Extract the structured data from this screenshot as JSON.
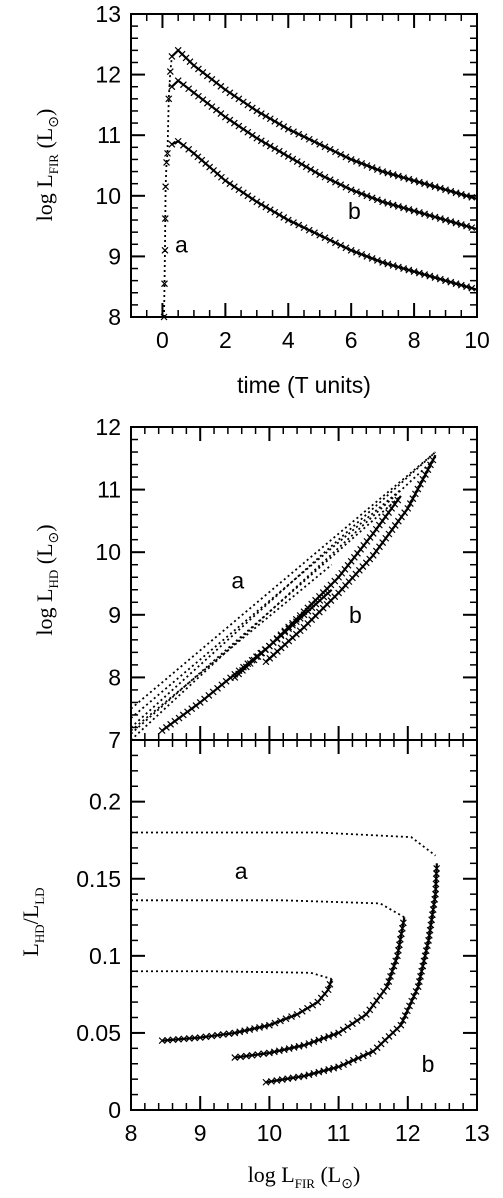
{
  "chart_data": [
    {
      "type": "line",
      "xlabel": "time (T units)",
      "ylabel": {
        "main": "log L",
        "sub": "FIR",
        "unit": "(L",
        "unit_symbol": "⊙",
        "unit_close": ")"
      },
      "xlim": [
        -1,
        10
      ],
      "ylim": [
        8,
        13
      ],
      "xticks": [
        0,
        2,
        4,
        6,
        8,
        10
      ],
      "yticks": [
        8,
        9,
        10,
        11,
        12,
        13
      ],
      "grid": false,
      "series": [
        {
          "style": "solid-cross",
          "x": [
            0.3,
            0.5,
            1,
            2,
            3,
            4,
            5,
            6,
            7,
            8,
            9,
            10
          ],
          "y": [
            12.3,
            12.4,
            12.15,
            11.75,
            11.4,
            11.1,
            10.85,
            10.6,
            10.4,
            10.25,
            10.1,
            9.95
          ]
        },
        {
          "style": "solid-cross",
          "x": [
            0.3,
            0.5,
            1,
            2,
            3,
            4,
            5,
            6,
            7,
            8,
            9,
            10
          ],
          "y": [
            11.8,
            11.9,
            11.7,
            11.3,
            10.95,
            10.65,
            10.35,
            10.1,
            9.9,
            9.75,
            9.6,
            9.45
          ]
        },
        {
          "style": "solid-cross",
          "x": [
            0.3,
            0.5,
            1,
            2,
            3,
            4,
            5,
            6,
            7,
            8,
            9,
            10
          ],
          "y": [
            10.85,
            10.9,
            10.7,
            10.25,
            9.9,
            9.6,
            9.35,
            9.1,
            8.9,
            8.75,
            8.6,
            8.45
          ]
        },
        {
          "style": "dotted-cross",
          "x": [
            0.05,
            0.08,
            0.1,
            0.13,
            0.16,
            0.2,
            0.25,
            0.3
          ],
          "y": [
            8.0,
            9.1,
            10.15,
            10.55,
            10.7,
            11.6,
            12.05,
            12.3
          ]
        }
      ],
      "annotations": [
        {
          "text": "a",
          "x": 0.4,
          "y": 9.2
        },
        {
          "text": "b",
          "x": 5.9,
          "y": 9.75
        }
      ]
    },
    {
      "type": "line",
      "xlabel": "",
      "ylabel": {
        "main": "log L",
        "sub": "HD",
        "unit": "(L",
        "unit_symbol": "⊙",
        "unit_close": ")"
      },
      "xlim": [
        8,
        13
      ],
      "ylim": [
        7,
        12
      ],
      "yticks": [
        7,
        8,
        9,
        10,
        11,
        12
      ],
      "grid": false,
      "series": [
        {
          "style": "solid-cross",
          "x": [
            8.45,
            9,
            9.5,
            10,
            10.5,
            10.9
          ],
          "y": [
            7.15,
            7.6,
            8.05,
            8.5,
            9.0,
            9.4
          ]
        },
        {
          "style": "solid-cross",
          "x": [
            9.5,
            10,
            10.5,
            11,
            11.5,
            11.9
          ],
          "y": [
            8.0,
            8.5,
            9.05,
            9.6,
            10.3,
            10.9
          ]
        },
        {
          "style": "solid-cross",
          "x": [
            9.95,
            10.5,
            11,
            11.5,
            12,
            12.4
          ],
          "y": [
            8.25,
            8.8,
            9.35,
            9.95,
            10.7,
            11.55
          ]
        },
        {
          "style": "dotted",
          "x": [
            8.0,
            12.4
          ],
          "y": [
            7.2,
            11.6
          ]
        },
        {
          "style": "dotted",
          "x": [
            8.0,
            12.4
          ],
          "y": [
            7.0,
            11.5
          ]
        },
        {
          "style": "dotted",
          "x": [
            8.0,
            12.4
          ],
          "y": [
            7.5,
            11.6
          ]
        },
        {
          "style": "dotted",
          "x": [
            8.0,
            11.9
          ],
          "y": [
            7.35,
            11.0
          ]
        },
        {
          "style": "dotted",
          "x": [
            8.0,
            11.9
          ],
          "y": [
            7.1,
            10.9
          ]
        },
        {
          "style": "dotted",
          "x": [
            8.0,
            10.9
          ],
          "y": [
            7.15,
            9.8
          ]
        }
      ],
      "annotations": [
        {
          "text": "a",
          "x": 9.45,
          "y": 9.55
        },
        {
          "text": "b",
          "x": 11.15,
          "y": 9.0
        }
      ]
    },
    {
      "type": "line",
      "xlabel": {
        "main": "log L",
        "sub": "FIR",
        "unit": "(L",
        "unit_symbol": "⊙",
        "unit_close": ")"
      },
      "ylabel": {
        "num": "L",
        "num_sub": "HD",
        "den": "L",
        "den_sub": "LD"
      },
      "xlim": [
        8,
        13
      ],
      "ylim": [
        0,
        0.24
      ],
      "xticks": [
        8,
        9,
        10,
        11,
        12,
        13
      ],
      "yticks": [
        0,
        0.05,
        0.1,
        0.15,
        0.2
      ],
      "ytick_labels": [
        "0",
        "0.05",
        "0.1",
        "0.15",
        "0.2"
      ],
      "grid": false,
      "series": [
        {
          "style": "solid-cross",
          "x": [
            8.45,
            9,
            9.5,
            10,
            10.4,
            10.7,
            10.85,
            10.9
          ],
          "y": [
            0.045,
            0.047,
            0.05,
            0.055,
            0.062,
            0.07,
            0.078,
            0.085
          ]
        },
        {
          "style": "solid-cross",
          "x": [
            9.5,
            10,
            10.5,
            11,
            11.4,
            11.7,
            11.85,
            11.95
          ],
          "y": [
            0.034,
            0.037,
            0.042,
            0.05,
            0.062,
            0.08,
            0.1,
            0.125
          ]
        },
        {
          "style": "solid-cross",
          "x": [
            9.95,
            10.5,
            11,
            11.5,
            11.9,
            12.15,
            12.3,
            12.4,
            12.42
          ],
          "y": [
            0.018,
            0.022,
            0.028,
            0.038,
            0.055,
            0.08,
            0.11,
            0.14,
            0.16
          ]
        },
        {
          "style": "dotted",
          "x": [
            8.0,
            10.7,
            12.05,
            12.4
          ],
          "y": [
            0.18,
            0.18,
            0.177,
            0.165
          ]
        },
        {
          "style": "dotted",
          "x": [
            8.0,
            10.2,
            11.6,
            11.95
          ],
          "y": [
            0.136,
            0.136,
            0.134,
            0.125
          ]
        },
        {
          "style": "dotted",
          "x": [
            8.0,
            9.15,
            10.6,
            10.9
          ],
          "y": [
            0.09,
            0.09,
            0.089,
            0.085
          ]
        }
      ],
      "annotations": [
        {
          "text": "a",
          "x": 9.5,
          "y": 0.155
        },
        {
          "text": "b",
          "x": 12.2,
          "y": 0.03
        }
      ]
    }
  ]
}
